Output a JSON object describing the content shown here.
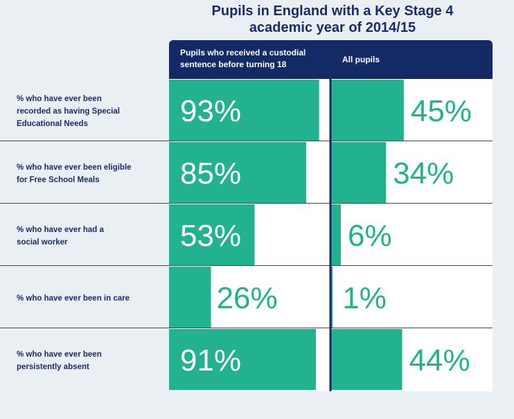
{
  "title_lines": [
    "Pupils in England with a Key Stage 4",
    "academic year of 2014/15"
  ],
  "colors": {
    "bar": "#22b28f",
    "header_bg": "#142a66",
    "divider": "#2f4585",
    "label_inside": "#ffffff",
    "label_outside": "#22b28f",
    "title": "#1b2b6b",
    "background": "#e9eff2",
    "cell_bg": "#ffffff"
  },
  "chart_data": {
    "type": "bar",
    "orientation": "horizontal",
    "title": "Pupils in England with a Key Stage 4 academic year of 2014/15",
    "categories": [
      "% who have ever been recorded as having Special Educational Needs",
      "% who have ever been eligible for Free School Meals",
      "% who have ever had a social worker",
      "% who have ever been in care",
      "% who have ever been persistently absent"
    ],
    "category_lines": [
      [
        "% who have ever been",
        "recorded as having Special",
        "Educational Needs"
      ],
      [
        "% who have ever been eligible",
        "for Free School Meals"
      ],
      [
        "% who have ever had a",
        "social worker"
      ],
      [
        "% who have ever been in care"
      ],
      [
        "% who have ever been",
        "persistently absent"
      ]
    ],
    "series": [
      {
        "name": "Pupils who received a custodial sentence before turning 18",
        "name_lines": [
          "Pupils who received a custodial",
          "sentence before turning 18"
        ],
        "values": [
          93,
          85,
          53,
          26,
          91
        ],
        "labels": [
          "93%",
          "85%",
          "53%",
          "26%",
          "91%"
        ]
      },
      {
        "name": "All pupils",
        "name_lines": [
          "All pupils"
        ],
        "values": [
          45,
          34,
          6,
          1,
          44
        ],
        "labels": [
          "45%",
          "34%",
          "6%",
          "1%",
          "44%"
        ]
      }
    ],
    "xlim": [
      0,
      100
    ],
    "unit": "%",
    "grid": false,
    "legend": "column headers"
  }
}
